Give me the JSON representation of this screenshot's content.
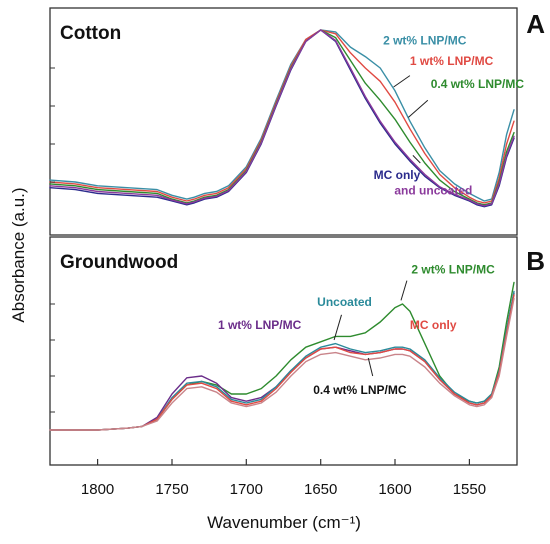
{
  "chart_data": {
    "type": "line",
    "xlabel": "Wavenumber (cm⁻¹)",
    "ylabel": "Absorbance (a.u.)",
    "xlim": [
      1832,
      1518
    ],
    "x_reversed": true,
    "xticks": [
      1800,
      1750,
      1700,
      1650,
      1600,
      1550
    ],
    "xtick_labels": [
      "1800",
      "1750",
      "1700",
      "1650",
      "1600",
      "1550"
    ],
    "grid": false,
    "panels": [
      {
        "letter": "A",
        "title": "Cotton",
        "ylim": [
          0,
          1
        ],
        "labels": [
          {
            "text": "2 wt% LNP/MC",
            "color": "#3a8fa6",
            "anchor": "start",
            "at": [
              1608,
              0.925
            ],
            "leader": []
          },
          {
            "text": "1 wt% LNP/MC",
            "color": "#e04a43",
            "anchor": "start",
            "at": [
              1590,
              0.815
            ],
            "leader": [
              [
                1590,
                0.76
              ],
              [
                1601,
                0.7
              ]
            ]
          },
          {
            "text": "0.4 wt% LNP/MC",
            "color": "#2e8b2e",
            "anchor": "start",
            "at": [
              1576,
              0.695
            ],
            "leader": [
              [
                1578,
                0.63
              ],
              [
                1591,
                0.54
              ]
            ]
          },
          {
            "text": "MC only",
            "color": "#2b2b8c",
            "anchor": "end",
            "at": [
              1583,
              0.215
            ],
            "leader": [
              [
                1583,
                0.3
              ],
              [
                1588,
                0.34
              ]
            ]
          },
          {
            "text": "and uncoated",
            "color": "#8b3a9c",
            "anchor": "end",
            "at": [
              1548,
              0.135
            ],
            "leader": []
          }
        ],
        "series": [
          {
            "name": "2 wt% LNP/MC",
            "color": "#3a8fa6",
            "x": [
              1832,
              1815,
              1800,
              1780,
              1760,
              1750,
              1740,
              1735,
              1728,
              1720,
              1712,
              1700,
              1690,
              1680,
              1670,
              1660,
              1650,
              1640,
              1630,
              1620,
              1610,
              1600,
              1590,
              1580,
              1570,
              1560,
              1550,
              1545,
              1540,
              1535,
              1530,
              1525,
              1520
            ],
            "y": [
              0.21,
              0.2,
              0.18,
              0.17,
              0.16,
              0.13,
              0.11,
              0.12,
              0.14,
              0.15,
              0.18,
              0.28,
              0.43,
              0.63,
              0.82,
              0.95,
              1.0,
              0.99,
              0.91,
              0.86,
              0.8,
              0.68,
              0.52,
              0.38,
              0.26,
              0.19,
              0.14,
              0.12,
              0.1,
              0.11,
              0.25,
              0.45,
              0.58
            ]
          },
          {
            "name": "1 wt% LNP/MC",
            "color": "#e04a43",
            "x": [
              1832,
              1815,
              1800,
              1780,
              1760,
              1750,
              1740,
              1735,
              1728,
              1720,
              1712,
              1700,
              1690,
              1680,
              1670,
              1660,
              1650,
              1640,
              1630,
              1620,
              1610,
              1600,
              1590,
              1580,
              1570,
              1560,
              1550,
              1545,
              1540,
              1535,
              1530,
              1525,
              1520
            ],
            "y": [
              0.2,
              0.19,
              0.17,
              0.16,
              0.15,
              0.12,
              0.1,
              0.11,
              0.13,
              0.14,
              0.17,
              0.27,
              0.42,
              0.62,
              0.81,
              0.95,
              1.0,
              0.98,
              0.88,
              0.8,
              0.73,
              0.62,
              0.48,
              0.35,
              0.24,
              0.17,
              0.12,
              0.1,
              0.09,
              0.1,
              0.22,
              0.4,
              0.52
            ]
          },
          {
            "name": "0.4 wt% LNP/MC",
            "color": "#2e8b2e",
            "x": [
              1832,
              1815,
              1800,
              1780,
              1760,
              1750,
              1740,
              1735,
              1728,
              1720,
              1712,
              1700,
              1690,
              1680,
              1670,
              1660,
              1650,
              1640,
              1630,
              1620,
              1610,
              1600,
              1590,
              1580,
              1570,
              1560,
              1550,
              1545,
              1540,
              1535,
              1530,
              1525,
              1520
            ],
            "y": [
              0.19,
              0.18,
              0.16,
              0.15,
              0.14,
              0.11,
              0.09,
              0.1,
              0.12,
              0.13,
              0.16,
              0.26,
              0.41,
              0.61,
              0.8,
              0.94,
              1.0,
              0.96,
              0.84,
              0.72,
              0.63,
              0.53,
              0.41,
              0.3,
              0.21,
              0.15,
              0.11,
              0.09,
              0.08,
              0.09,
              0.2,
              0.36,
              0.46
            ]
          },
          {
            "name": "MC only",
            "color": "#2b2b8c",
            "x": [
              1832,
              1815,
              1800,
              1780,
              1760,
              1750,
              1740,
              1735,
              1728,
              1720,
              1712,
              1700,
              1690,
              1680,
              1670,
              1660,
              1650,
              1640,
              1630,
              1620,
              1610,
              1600,
              1590,
              1580,
              1570,
              1560,
              1550,
              1545,
              1540,
              1535,
              1530,
              1525,
              1520
            ],
            "y": [
              0.17,
              0.16,
              0.14,
              0.13,
              0.12,
              0.1,
              0.08,
              0.09,
              0.11,
              0.12,
              0.15,
              0.25,
              0.4,
              0.6,
              0.79,
              0.94,
              1.0,
              0.94,
              0.79,
              0.64,
              0.51,
              0.4,
              0.31,
              0.23,
              0.17,
              0.13,
              0.1,
              0.08,
              0.07,
              0.08,
              0.18,
              0.33,
              0.43
            ]
          },
          {
            "name": "uncoated",
            "color": "#8b3a9c",
            "x": [
              1832,
              1815,
              1800,
              1780,
              1760,
              1750,
              1740,
              1735,
              1728,
              1720,
              1712,
              1700,
              1690,
              1680,
              1670,
              1660,
              1650,
              1640,
              1630,
              1620,
              1610,
              1600,
              1590,
              1580,
              1570,
              1560,
              1550,
              1545,
              1540,
              1535,
              1530,
              1525,
              1520
            ],
            "y": [
              0.18,
              0.17,
              0.15,
              0.14,
              0.13,
              0.105,
              0.085,
              0.095,
              0.115,
              0.125,
              0.155,
              0.255,
              0.405,
              0.605,
              0.795,
              0.94,
              1.0,
              0.945,
              0.8,
              0.65,
              0.52,
              0.41,
              0.32,
              0.24,
              0.175,
              0.135,
              0.105,
              0.085,
              0.075,
              0.085,
              0.19,
              0.34,
              0.44
            ]
          }
        ]
      },
      {
        "letter": "B",
        "title": "Groundwood",
        "ylim": [
          0,
          1
        ],
        "labels": [
          {
            "text": "2 wt% LNP/MC",
            "color": "#2e8b2e",
            "anchor": "start",
            "at": [
              1589,
              0.97
            ],
            "leader": [
              [
                1592,
                0.93
              ],
              [
                1596,
                0.82
              ]
            ]
          },
          {
            "text": "Uncoated",
            "color": "#2a8a9a",
            "anchor": "middle",
            "at": [
              1634,
              0.79
            ],
            "leader": [
              [
                1636,
                0.74
              ],
              [
                1641,
                0.6
              ]
            ]
          },
          {
            "text": "1 wt% LNP/MC",
            "color": "#6b2d8a",
            "anchor": "end",
            "at": [
              1663,
              0.66
            ],
            "leader": []
          },
          {
            "text": "MC only",
            "color": "#e04a43",
            "anchor": "start",
            "at": [
              1590,
              0.66
            ],
            "leader": []
          },
          {
            "text": "0.4 wt% LNP/MC",
            "color": "#111111",
            "anchor": "start",
            "at": [
              1655,
              0.3
            ],
            "leader": [
              [
                1615,
                0.4
              ],
              [
                1618,
                0.5
              ]
            ]
          }
        ],
        "series": [
          {
            "name": "2 wt% LNP/MC",
            "color": "#2e8b2e",
            "x": [
              1832,
              1800,
              1780,
              1770,
              1760,
              1750,
              1740,
              1730,
              1720,
              1710,
              1700,
              1690,
              1680,
              1670,
              1660,
              1650,
              1640,
              1630,
              1620,
              1610,
              1600,
              1595,
              1590,
              1580,
              1570,
              1560,
              1550,
              1545,
              1540,
              1535,
              1530,
              1525,
              1520
            ],
            "y": [
              0.1,
              0.1,
              0.11,
              0.12,
              0.16,
              0.27,
              0.35,
              0.37,
              0.35,
              0.3,
              0.3,
              0.33,
              0.4,
              0.49,
              0.56,
              0.59,
              0.62,
              0.62,
              0.64,
              0.7,
              0.78,
              0.8,
              0.76,
              0.58,
              0.4,
              0.3,
              0.26,
              0.25,
              0.26,
              0.3,
              0.45,
              0.7,
              0.92
            ]
          },
          {
            "name": "1 wt% LNP/MC",
            "color": "#6b2d8a",
            "x": [
              1832,
              1800,
              1780,
              1770,
              1760,
              1750,
              1740,
              1730,
              1720,
              1710,
              1700,
              1690,
              1680,
              1670,
              1660,
              1650,
              1640,
              1630,
              1620,
              1610,
              1600,
              1595,
              1590,
              1580,
              1570,
              1560,
              1550,
              1545,
              1540,
              1535,
              1530,
              1525,
              1520
            ],
            "y": [
              0.1,
              0.1,
              0.11,
              0.12,
              0.17,
              0.3,
              0.39,
              0.4,
              0.36,
              0.28,
              0.26,
              0.28,
              0.34,
              0.43,
              0.5,
              0.55,
              0.56,
              0.54,
              0.52,
              0.53,
              0.55,
              0.55,
              0.54,
              0.48,
              0.38,
              0.3,
              0.25,
              0.24,
              0.25,
              0.29,
              0.42,
              0.65,
              0.86
            ]
          },
          {
            "name": "Uncoated",
            "color": "#2a8a9a",
            "x": [
              1832,
              1800,
              1780,
              1770,
              1760,
              1750,
              1740,
              1730,
              1720,
              1710,
              1700,
              1690,
              1680,
              1670,
              1660,
              1650,
              1640,
              1630,
              1620,
              1610,
              1600,
              1595,
              1590,
              1580,
              1570,
              1560,
              1550,
              1545,
              1540,
              1535,
              1530,
              1525,
              1520
            ],
            "y": [
              0.1,
              0.1,
              0.11,
              0.12,
              0.16,
              0.28,
              0.36,
              0.37,
              0.34,
              0.27,
              0.25,
              0.27,
              0.34,
              0.43,
              0.51,
              0.56,
              0.58,
              0.55,
              0.53,
              0.54,
              0.56,
              0.56,
              0.55,
              0.49,
              0.39,
              0.31,
              0.26,
              0.25,
              0.26,
              0.3,
              0.43,
              0.66,
              0.87
            ]
          },
          {
            "name": "MC only",
            "color": "#e04a43",
            "x": [
              1832,
              1800,
              1780,
              1770,
              1760,
              1750,
              1740,
              1730,
              1720,
              1710,
              1700,
              1690,
              1680,
              1670,
              1660,
              1650,
              1640,
              1630,
              1620,
              1610,
              1600,
              1595,
              1590,
              1580,
              1570,
              1560,
              1550,
              1545,
              1540,
              1535,
              1530,
              1525,
              1520
            ],
            "y": [
              0.1,
              0.1,
              0.11,
              0.12,
              0.16,
              0.27,
              0.35,
              0.36,
              0.33,
              0.26,
              0.24,
              0.26,
              0.33,
              0.42,
              0.5,
              0.55,
              0.56,
              0.53,
              0.52,
              0.53,
              0.55,
              0.55,
              0.54,
              0.48,
              0.38,
              0.3,
              0.25,
              0.24,
              0.25,
              0.29,
              0.42,
              0.64,
              0.85
            ]
          },
          {
            "name": "0.4 wt% LNP/MC",
            "color": "#c9848a",
            "x": [
              1832,
              1800,
              1780,
              1770,
              1760,
              1750,
              1740,
              1730,
              1720,
              1710,
              1700,
              1690,
              1680,
              1670,
              1660,
              1650,
              1640,
              1630,
              1620,
              1610,
              1600,
              1595,
              1590,
              1580,
              1570,
              1560,
              1550,
              1545,
              1540,
              1535,
              1530,
              1525,
              1520
            ],
            "y": [
              0.1,
              0.1,
              0.11,
              0.12,
              0.15,
              0.25,
              0.33,
              0.34,
              0.31,
              0.25,
              0.23,
              0.25,
              0.31,
              0.4,
              0.48,
              0.52,
              0.53,
              0.51,
              0.49,
              0.5,
              0.52,
              0.52,
              0.51,
              0.45,
              0.36,
              0.29,
              0.24,
              0.23,
              0.24,
              0.28,
              0.4,
              0.62,
              0.83
            ]
          }
        ]
      }
    ]
  }
}
